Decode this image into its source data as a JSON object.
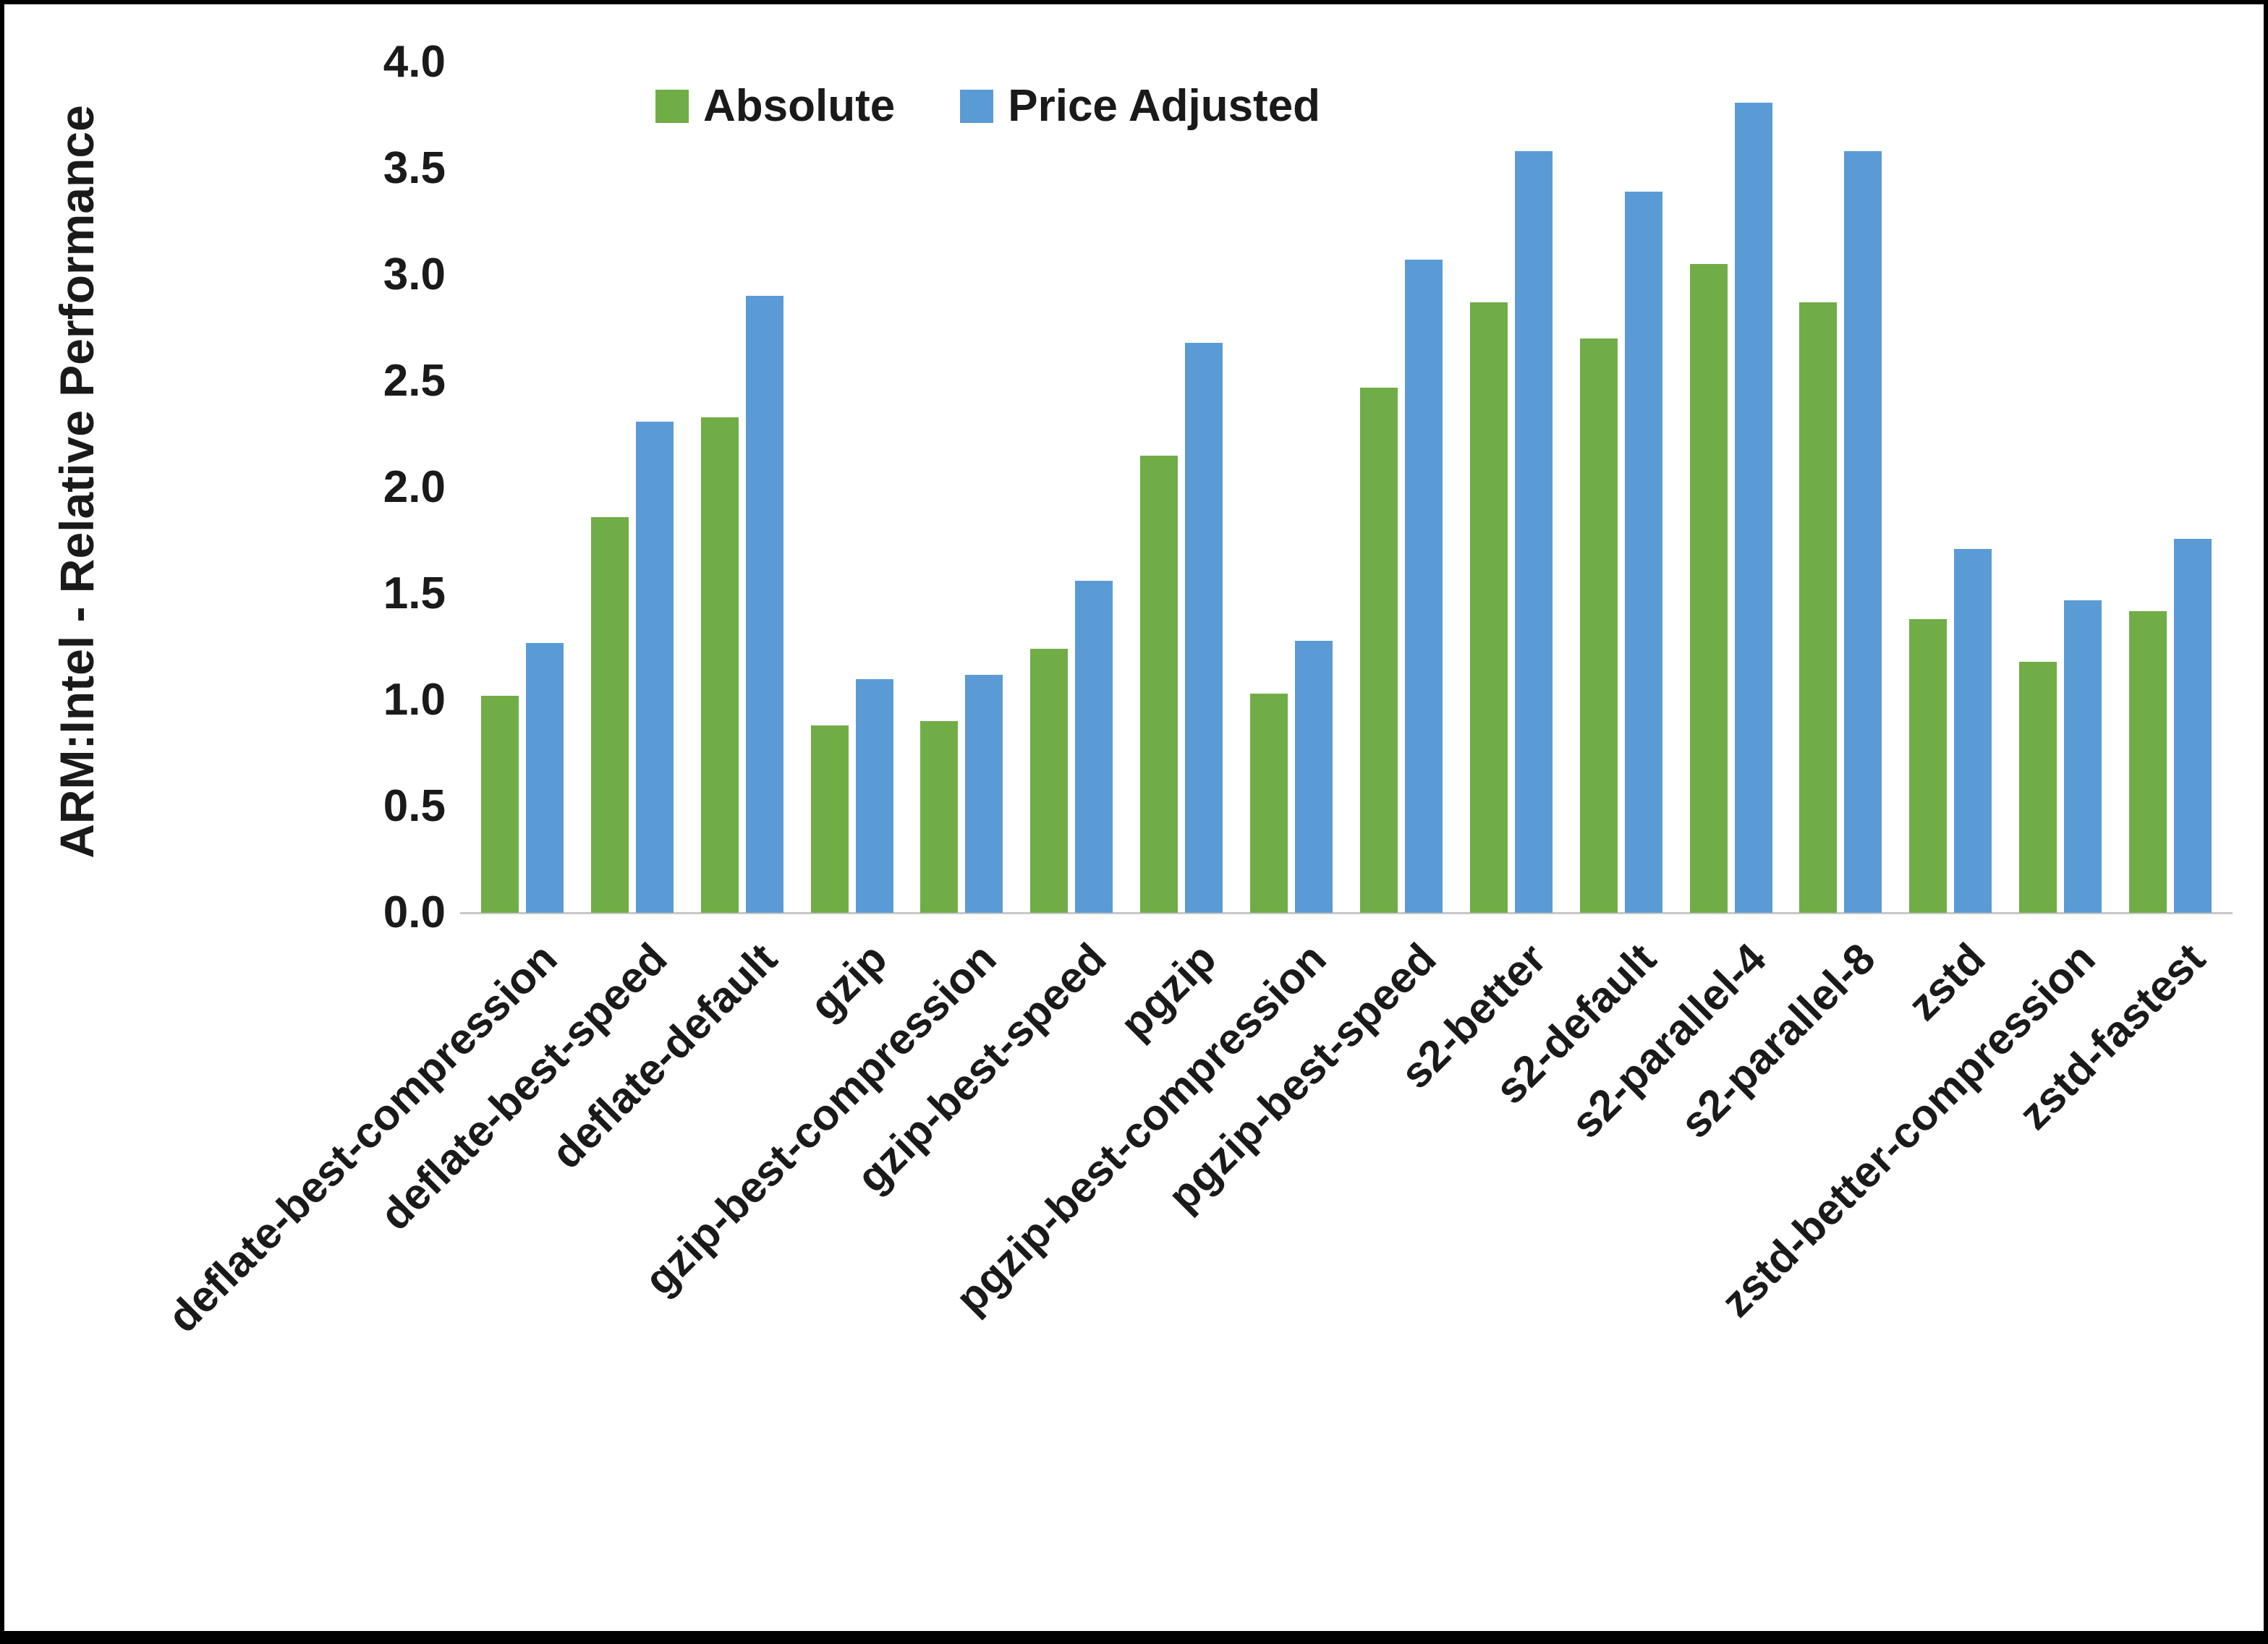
{
  "chart_data": {
    "type": "bar",
    "ylabel": "ARM:Intel - Relative Performance",
    "xlabel": "",
    "ylim": [
      0.0,
      4.0
    ],
    "ytick_step": 0.5,
    "yticks": [
      "0.0",
      "0.5",
      "1.0",
      "1.5",
      "2.0",
      "2.5",
      "3.0",
      "3.5",
      "4.0"
    ],
    "grid": false,
    "legend_position": "top-center",
    "categories": [
      "deflate-best-compression",
      "deflate-best-speed",
      "deflate-default",
      "gzip",
      "gzip-best-compression",
      "gzip-best-speed",
      "pgzip",
      "pgzip-best-compression",
      "pgzip-best-speed",
      "s2-better",
      "s2-default",
      "s2-parallel-4",
      "s2-parallel-8",
      "zstd",
      "zstd-better-compression",
      "zstd-fastest"
    ],
    "series": [
      {
        "name": "Absolute",
        "color": "#70AD47",
        "values": [
          1.02,
          1.86,
          2.33,
          0.88,
          0.9,
          1.24,
          2.15,
          1.03,
          2.47,
          2.87,
          2.7,
          3.05,
          2.87,
          1.38,
          1.18,
          1.42
        ]
      },
      {
        "name": "Price Adjusted",
        "color": "#5B9BD5",
        "values": [
          1.27,
          2.31,
          2.9,
          1.1,
          1.12,
          1.56,
          2.68,
          1.28,
          3.07,
          3.58,
          3.39,
          3.81,
          3.58,
          1.71,
          1.47,
          1.76
        ]
      }
    ]
  }
}
